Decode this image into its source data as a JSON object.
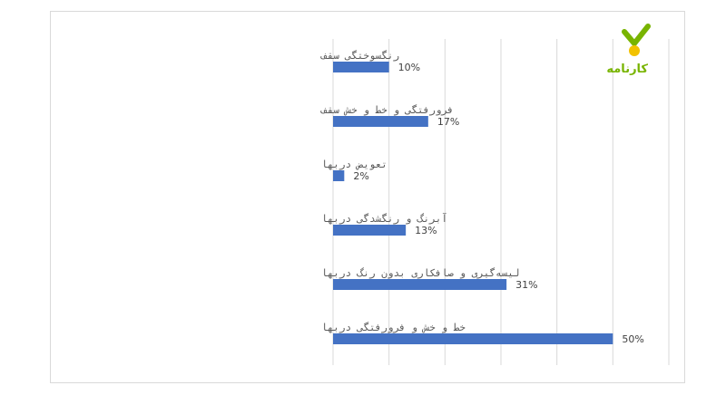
{
  "brand": {
    "logo_text": "کارنامه",
    "check_color": "#78b400",
    "sun_color": "#f2c200"
  },
  "chart_data": {
    "type": "bar",
    "orientation": "horizontal",
    "categories": [
      "رنگسوختگی سقف",
      "فرورفتگی و  خط و خش سقف",
      "تعویض دربها",
      "آبرنگ و رنگشدگی دربها",
      "لیسه‌گیری و صافکاری بدون رنگ دربها",
      "خط و خش و فرورفتگی دربها"
    ],
    "values": [
      10,
      17,
      2,
      13,
      31,
      50
    ],
    "value_labels": [
      "10%",
      "17%",
      "2%",
      "13%",
      "31%",
      "50%"
    ],
    "xlim": [
      0,
      60
    ],
    "grid": true,
    "bar_color": "#4472c4",
    "legend": "none"
  }
}
